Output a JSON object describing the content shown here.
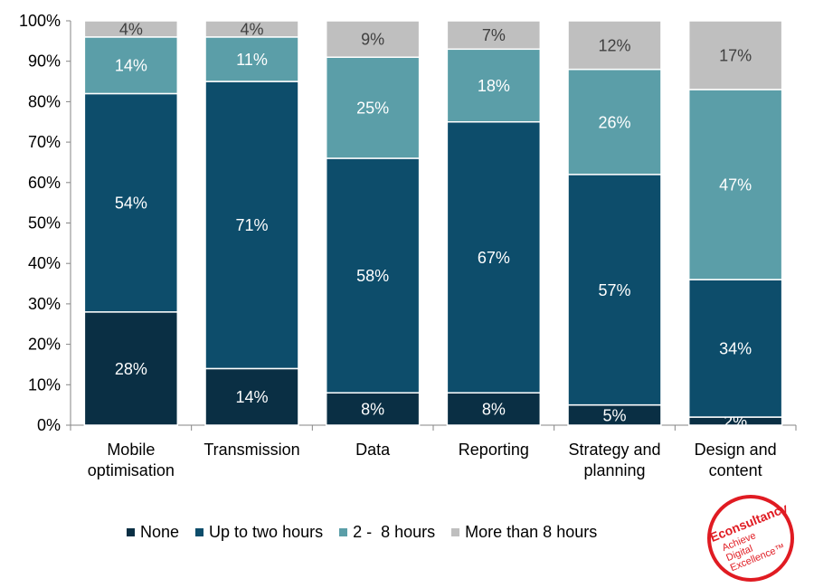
{
  "chart_data": {
    "type": "bar",
    "stacked": true,
    "categories": [
      [
        "Mobile",
        "optimisation"
      ],
      [
        "Transmission"
      ],
      [
        "Data"
      ],
      [
        "Reporting"
      ],
      [
        "Strategy and",
        "planning"
      ],
      [
        "Design and",
        "content"
      ]
    ],
    "series": [
      {
        "name": "None",
        "color": "#0a2f44",
        "values": [
          28,
          14,
          8,
          8,
          5,
          2
        ]
      },
      {
        "name": "Up to two hours",
        "color": "#0d4d6b",
        "values": [
          54,
          71,
          58,
          67,
          57,
          34
        ]
      },
      {
        "name": "2 -  8 hours",
        "color": "#5b9ea8",
        "values": [
          14,
          11,
          25,
          18,
          26,
          47
        ]
      },
      {
        "name": "More than 8 hours",
        "color": "#bfbfbf",
        "values": [
          4,
          4,
          9,
          7,
          12,
          17
        ]
      }
    ],
    "ylim": [
      0,
      100
    ],
    "yticks": [
      "0%",
      "10%",
      "20%",
      "30%",
      "40%",
      "50%",
      "60%",
      "70%",
      "80%",
      "90%",
      "100%"
    ],
    "value_suffix": "%",
    "grid": false,
    "legend_position": "bottom"
  },
  "logo": {
    "text_main": "Econsultancy",
    "text_tag": [
      "Achieve",
      "Digital",
      "Excellence™"
    ],
    "color": "#e01b22"
  }
}
